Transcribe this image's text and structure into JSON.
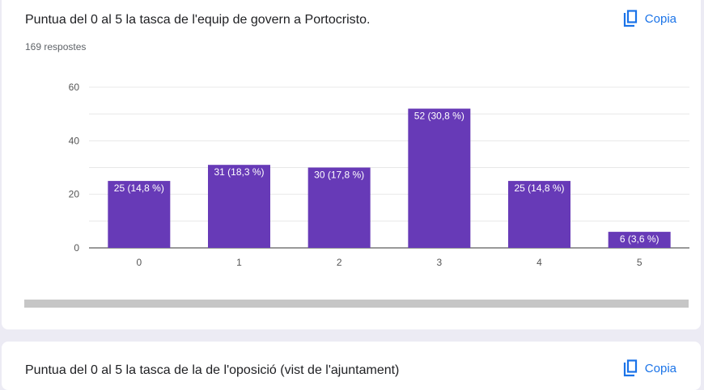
{
  "question1": {
    "title": "Puntua del 0 al 5 la tasca de l'equip de govern a Portocristo.",
    "responses": "169 respostes",
    "copy_label": "Copia"
  },
  "question2": {
    "title": "Puntua del 0 al 5 la tasca de la de l'oposició (vist de l'ajuntament)",
    "copy_label": "Copia"
  },
  "colors": {
    "bar": "#673ab7",
    "accent": "#1a73e8"
  },
  "chart_data": {
    "type": "bar",
    "title": "Puntua del 0 al 5 la tasca de l'equip de govern a Portocristo.",
    "categories": [
      "0",
      "1",
      "2",
      "3",
      "4",
      "5"
    ],
    "values": [
      25,
      31,
      30,
      52,
      25,
      6
    ],
    "labels": [
      "25 (14,8 %)",
      "31 (18,3 %)",
      "30 (17,8 %)",
      "52 (30,8 %)",
      "25 (14,8 %)",
      "6 (3,6 %)"
    ],
    "yticks": [
      0,
      20,
      40,
      60
    ],
    "ylim": [
      0,
      60
    ],
    "grid": true,
    "xlabel": "",
    "ylabel": ""
  }
}
